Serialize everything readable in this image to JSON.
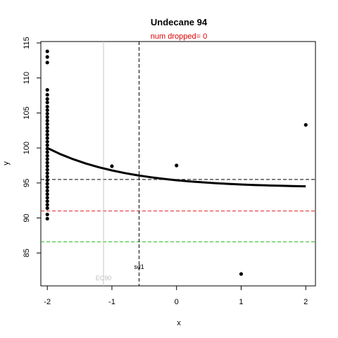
{
  "chart_data": {
    "type": "scatter",
    "title": "Undecane 94",
    "subtitle": "num dropped= 0",
    "xlabel": "x",
    "ylabel": "y",
    "xlim": [
      -2.1,
      2.15
    ],
    "ylim": [
      80.3,
      115.2
    ],
    "x_ticks": [
      -2,
      -1,
      0,
      1,
      2
    ],
    "y_ticks": [
      85,
      90,
      95,
      100,
      105,
      110,
      115
    ],
    "points": [
      {
        "x": -2,
        "y": 113.8
      },
      {
        "x": -2,
        "y": 113.0
      },
      {
        "x": -2,
        "y": 112.2
      },
      {
        "x": -2,
        "y": 108.3
      },
      {
        "x": -2,
        "y": 107.6
      },
      {
        "x": -2,
        "y": 107.0
      },
      {
        "x": -2,
        "y": 106.5
      },
      {
        "x": -2,
        "y": 105.9
      },
      {
        "x": -2,
        "y": 105.4
      },
      {
        "x": -2,
        "y": 104.9
      },
      {
        "x": -2,
        "y": 104.4
      },
      {
        "x": -2,
        "y": 103.9
      },
      {
        "x": -2,
        "y": 103.4
      },
      {
        "x": -2,
        "y": 102.9
      },
      {
        "x": -2,
        "y": 102.4
      },
      {
        "x": -2,
        "y": 101.9
      },
      {
        "x": -2,
        "y": 101.4
      },
      {
        "x": -2,
        "y": 100.9
      },
      {
        "x": -2,
        "y": 100.4
      },
      {
        "x": -2,
        "y": 99.9
      },
      {
        "x": -2,
        "y": 99.4
      },
      {
        "x": -2,
        "y": 98.9
      },
      {
        "x": -2,
        "y": 98.4
      },
      {
        "x": -2,
        "y": 97.9
      },
      {
        "x": -2,
        "y": 97.4
      },
      {
        "x": -2,
        "y": 96.9
      },
      {
        "x": -2,
        "y": 96.4
      },
      {
        "x": -2,
        "y": 95.9
      },
      {
        "x": -2,
        "y": 95.4
      },
      {
        "x": -2,
        "y": 94.9
      },
      {
        "x": -2,
        "y": 94.4
      },
      {
        "x": -2,
        "y": 93.9
      },
      {
        "x": -2,
        "y": 93.4
      },
      {
        "x": -2,
        "y": 92.9
      },
      {
        "x": -2,
        "y": 92.4
      },
      {
        "x": -2,
        "y": 91.9
      },
      {
        "x": -2,
        "y": 91.4
      },
      {
        "x": -2,
        "y": 90.5
      },
      {
        "x": -2,
        "y": 89.9
      },
      {
        "x": -1,
        "y": 97.4
      },
      {
        "x": 0,
        "y": 97.5
      },
      {
        "x": 1,
        "y": 82.0
      },
      {
        "x": 2,
        "y": 103.3
      }
    ],
    "fit_curve": [
      [
        -2.0,
        100.0
      ],
      [
        -1.8,
        99.13
      ],
      [
        -1.6,
        98.39
      ],
      [
        -1.4,
        97.77
      ],
      [
        -1.2,
        97.24
      ],
      [
        -1.0,
        96.79
      ],
      [
        -0.8,
        96.41
      ],
      [
        -0.6,
        96.09
      ],
      [
        -0.4,
        95.82
      ],
      [
        -0.2,
        95.59
      ],
      [
        0.0,
        95.39
      ],
      [
        0.2,
        95.23
      ],
      [
        0.4,
        95.09
      ],
      [
        0.6,
        94.97
      ],
      [
        0.8,
        94.87
      ],
      [
        1.0,
        94.78
      ],
      [
        1.2,
        94.71
      ],
      [
        1.4,
        94.65
      ],
      [
        1.6,
        94.6
      ],
      [
        1.8,
        94.56
      ],
      [
        2.0,
        94.52
      ]
    ],
    "hlines": [
      {
        "y": 95.5,
        "color": "#000000",
        "style": "dashed"
      },
      {
        "y": 91.0,
        "color": "#dd2222",
        "style": "dashed"
      },
      {
        "y": 86.6,
        "color": "#22bb22",
        "style": "dashed"
      }
    ],
    "vlines": [
      {
        "x": -1.13,
        "color": "#c8c8c8",
        "style": "solid",
        "label": "EC90"
      },
      {
        "x": -0.58,
        "color": "#000000",
        "style": "dashed",
        "label": "sd1"
      }
    ],
    "grid": false,
    "legend": "none"
  }
}
